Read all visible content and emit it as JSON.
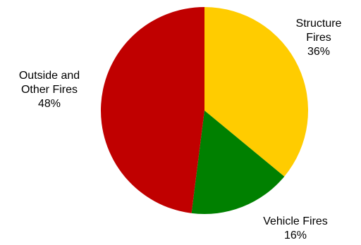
{
  "chart_data": {
    "type": "pie",
    "title": "",
    "start_angle_deg": 0,
    "direction": "clockwise",
    "slices": [
      {
        "label_lines": [
          "Structure",
          "Fires",
          "36%"
        ],
        "category": "Structure Fires",
        "value": 36,
        "color": "#ffcc00"
      },
      {
        "label_lines": [
          "Vehicle Fires",
          "16%"
        ],
        "category": "Vehicle Fires",
        "value": 16,
        "color": "#008000"
      },
      {
        "label_lines": [
          "Outside and",
          "Other Fires",
          "48%"
        ],
        "category": "Outside and Other Fires",
        "value": 48,
        "color": "#c00000"
      }
    ]
  }
}
